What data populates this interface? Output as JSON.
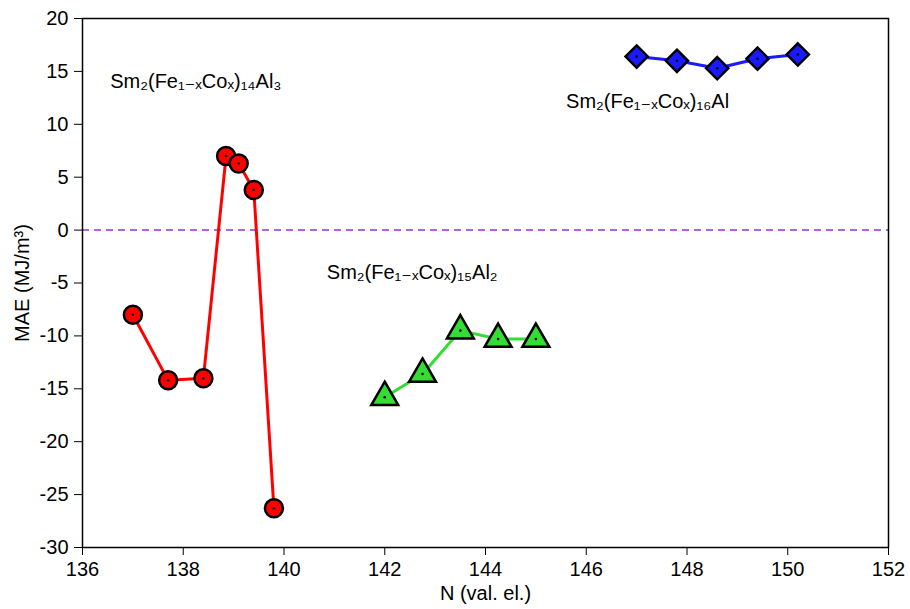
{
  "chart_data": {
    "type": "line",
    "x_label": "N (val. el.)",
    "y_label": "MAE (MJ/m³)",
    "xlim": [
      136,
      152
    ],
    "xticks": [
      136,
      138,
      140,
      142,
      144,
      146,
      148,
      150,
      152
    ],
    "ylim": [
      -30,
      20
    ],
    "yticks": [
      -30,
      -25,
      -20,
      -15,
      -10,
      -5,
      0,
      5,
      10,
      15,
      20
    ],
    "grid": false,
    "series": [
      {
        "name": "Sm₂(Fe₁₋ₓCoₓ)₁₄Al₃",
        "color": "#ff0000",
        "marker": "circle",
        "x": [
          137.0,
          137.7,
          138.4,
          138.85,
          139.1,
          139.4,
          139.8
        ],
        "values": [
          -8.0,
          -14.2,
          -14.0,
          7.0,
          6.3,
          3.8,
          -26.3
        ]
      },
      {
        "name": "Sm₂(Fe₁₋ₓCoₓ)₁₅Al₂",
        "color": "#33dd33",
        "marker": "triangle",
        "x": [
          142.0,
          142.75,
          143.5,
          144.25,
          145.0
        ],
        "values": [
          -15.8,
          -13.6,
          -9.5,
          -10.3,
          -10.3
        ]
      },
      {
        "name": "Sm₂(Fe₁₋ₓCoₓ)₁₆Al",
        "color": "#1a1aff",
        "marker": "diamond",
        "x": [
          147.0,
          147.8,
          148.6,
          149.4,
          150.2
        ],
        "values": [
          16.4,
          16.0,
          15.3,
          16.2,
          16.6
        ]
      }
    ],
    "annotations": [
      {
        "text": "Sm₂(Fe₁₋ₓCoₓ)₁₄Al₃",
        "x": 136.55,
        "y": 14.0
      },
      {
        "text": "Sm₂(Fe₁₋ₓCoₓ)₁₅Al₂",
        "x": 140.85,
        "y": -4.0
      },
      {
        "text": "Sm₂(Fe₁₋ₓCoₓ)₁₆Al",
        "x": 145.6,
        "y": 12.1
      }
    ],
    "hlines": [
      {
        "y": 0,
        "color": "#9933cc",
        "line_style": "dashed"
      }
    ]
  }
}
